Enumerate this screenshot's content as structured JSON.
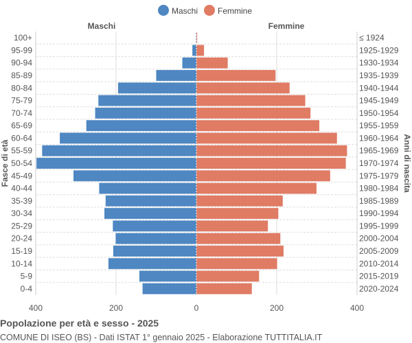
{
  "chart_data": {
    "type": "bar",
    "orientation": "horizontal-pyramid",
    "title": "Popolazione per età e sesso - 2025",
    "subtitle": "COMUNE DI ISEO (BS) - Dati ISTAT 1° gennaio 2025 - Elaborazione TUTTITALIA.IT",
    "ylabel_left": "Fasce di età",
    "ylabel_right": "Anni di nascita",
    "left_header": "Maschi",
    "right_header": "Femmine",
    "xlim": [
      -400,
      400
    ],
    "xticks": [
      "400",
      "200",
      "0",
      "200",
      "400"
    ],
    "grid": true,
    "legend_position": "top",
    "categories": [
      "100+",
      "95-99",
      "90-94",
      "85-89",
      "80-84",
      "75-79",
      "70-74",
      "65-69",
      "60-64",
      "55-59",
      "50-54",
      "45-49",
      "40-44",
      "35-39",
      "30-34",
      "25-29",
      "20-24",
      "15-19",
      "10-14",
      "5-9",
      "0-4"
    ],
    "birth_years": [
      "≤ 1924",
      "1925-1929",
      "1930-1934",
      "1935-1939",
      "1940-1944",
      "1945-1949",
      "1950-1954",
      "1955-1959",
      "1960-1964",
      "1965-1969",
      "1970-1974",
      "1975-1979",
      "1980-1984",
      "1985-1989",
      "1990-1994",
      "1995-1999",
      "2000-2004",
      "2005-2009",
      "2010-2014",
      "2015-2019",
      "2020-2024"
    ],
    "series": [
      {
        "name": "Maschi",
        "color": "#4e87c2",
        "values": [
          1,
          10,
          35,
          100,
          195,
          244,
          252,
          274,
          340,
          384,
          398,
          306,
          242,
          226,
          229,
          208,
          201,
          207,
          219,
          142,
          134
        ]
      },
      {
        "name": "Femmine",
        "color": "#e07b64",
        "values": [
          2,
          19,
          78,
          197,
          232,
          271,
          284,
          306,
          350,
          375,
          372,
          333,
          299,
          215,
          204,
          178,
          209,
          217,
          201,
          156,
          138
        ]
      }
    ]
  }
}
